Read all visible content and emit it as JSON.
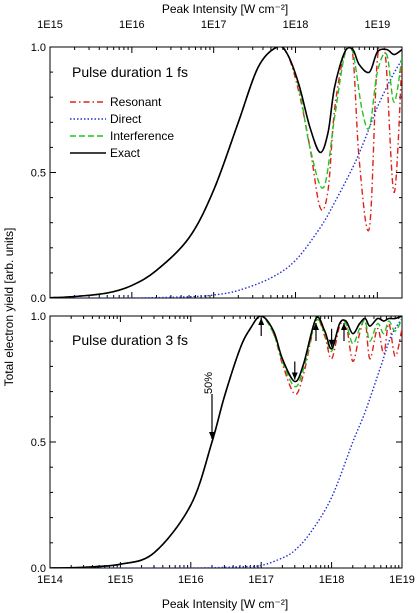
{
  "chart_data": [
    {
      "type": "line",
      "panel_label": "Pulse duration 1 fs",
      "xlabel": "Peak Intensity [W cm⁻²]",
      "x_scale": "log",
      "xlim": [
        1000000000000000.0,
        2e+19
      ],
      "x_ticks": [
        {
          "value": 1000000000000000.0,
          "label": "1E15"
        },
        {
          "value": 1e+16,
          "label": "1E16"
        },
        {
          "value": 1e+17,
          "label": "1E17"
        },
        {
          "value": 1e+18,
          "label": "1E18"
        },
        {
          "value": 1e+19,
          "label": "1E19"
        }
      ],
      "ylim": [
        0,
        1
      ],
      "y_ticks": [
        {
          "value": 0,
          "label": "0.0"
        },
        {
          "value": 0.5,
          "label": "0.5"
        },
        {
          "value": 1,
          "label": "1.0"
        }
      ],
      "legend_position": "left",
      "series": [
        {
          "name": "Resonant",
          "color": "#e0201b",
          "dash": "dashdot",
          "x": [
            1000000000000000.0,
            2000000000000000.0,
            5000000000000000.0,
            1e+16,
            2e+16,
            5e+16,
            1e+17,
            2e+17,
            3.5e+17,
            6e+17,
            8e+17,
            1.1e+18,
            1.5e+18,
            2e+18,
            2.5e+18,
            3e+18,
            4e+18,
            5e+18,
            6e+18,
            8e+18,
            1e+19,
            1.25e+19,
            1.6e+19,
            2e+19
          ],
          "y": [
            0.001,
            0.006,
            0.02,
            0.05,
            0.11,
            0.24,
            0.43,
            0.7,
            0.92,
            1.0,
            0.97,
            0.82,
            0.6,
            0.36,
            0.43,
            0.75,
            0.98,
            0.97,
            0.55,
            0.28,
            0.95,
            0.97,
            0.42,
            0.95
          ]
        },
        {
          "name": "Direct",
          "color": "#1f2fd6",
          "dash": "dot",
          "x": [
            1000000000000000.0,
            1e+16,
            5e+16,
            1e+17,
            2e+17,
            5e+17,
            1e+18,
            2e+18,
            3e+18,
            5e+18,
            7e+18,
            1e+19,
            1.5e+19,
            2e+19
          ],
          "y": [
            0,
            0,
            0.005,
            0.012,
            0.03,
            0.08,
            0.15,
            0.28,
            0.38,
            0.52,
            0.63,
            0.76,
            0.88,
            0.95
          ]
        },
        {
          "name": "Interference",
          "color": "#22c322",
          "dash": "dash",
          "x": [
            1000000000000000.0,
            2000000000000000.0,
            5000000000000000.0,
            1e+16,
            2e+16,
            5e+16,
            1e+17,
            2e+17,
            3.5e+17,
            6e+17,
            8e+17,
            1.1e+18,
            1.5e+18,
            2.2e+18,
            3e+18,
            4e+18,
            5e+18,
            6.5e+18,
            8e+18,
            1e+19,
            1.3e+19,
            1.6e+19,
            2e+19
          ],
          "y": [
            0.001,
            0.006,
            0.02,
            0.05,
            0.11,
            0.24,
            0.43,
            0.7,
            0.92,
            1.0,
            0.97,
            0.84,
            0.6,
            0.44,
            0.72,
            0.97,
            0.98,
            0.75,
            0.68,
            0.9,
            0.97,
            0.78,
            0.96
          ]
        },
        {
          "name": "Exact",
          "color": "#000000",
          "dash": "solid",
          "x": [
            1000000000000000.0,
            2000000000000000.0,
            5000000000000000.0,
            1e+16,
            2e+16,
            5e+16,
            1e+17,
            2e+17,
            3.5e+17,
            6e+17,
            8e+17,
            1.1e+18,
            1.5e+18,
            2e+18,
            2.5e+18,
            3e+18,
            4e+18,
            5e+18,
            6e+18,
            8e+18,
            1e+19,
            1.3e+19,
            1.6e+19,
            2e+19
          ],
          "y": [
            0.001,
            0.006,
            0.02,
            0.05,
            0.11,
            0.24,
            0.43,
            0.7,
            0.92,
            1.0,
            0.97,
            0.85,
            0.68,
            0.58,
            0.66,
            0.84,
            0.98,
            0.99,
            0.93,
            0.9,
            0.98,
            0.99,
            0.97,
            0.99
          ]
        }
      ]
    },
    {
      "type": "line",
      "panel_label": "Pulse duration 3 fs",
      "xlabel": "Peak Intensity [W cm⁻²]",
      "x_scale": "log",
      "xlim": [
        100000000000000.0,
        1e+19
      ],
      "x_ticks": [
        {
          "value": 100000000000000.0,
          "label": "1E14"
        },
        {
          "value": 1000000000000000.0,
          "label": "1E15"
        },
        {
          "value": 1e+16,
          "label": "1E16"
        },
        {
          "value": 1e+17,
          "label": "1E17"
        },
        {
          "value": 1e+18,
          "label": "1E18"
        },
        {
          "value": 1e+19,
          "label": "1E19"
        }
      ],
      "ylim": [
        0,
        1
      ],
      "y_ticks": [
        {
          "value": 0,
          "label": "0.0"
        },
        {
          "value": 0.5,
          "label": "0.5"
        },
        {
          "value": 1,
          "label": "1.0"
        }
      ],
      "annotations": [
        {
          "text": "50%",
          "x": 2e+16,
          "y": 0.5,
          "arrow": "down"
        },
        {
          "x": 1e+17,
          "y": 1.0,
          "arrow": "up"
        },
        {
          "x": 3e+17,
          "y": 0.74,
          "arrow": "down"
        },
        {
          "x": 6e+17,
          "y": 0.98,
          "arrow": "up"
        },
        {
          "x": 1e+18,
          "y": 0.87,
          "arrow": "down"
        },
        {
          "x": 1.5e+18,
          "y": 0.98,
          "arrow": "up"
        }
      ],
      "series": [
        {
          "name": "Resonant",
          "color": "#e0201b",
          "dash": "dashdot",
          "x": [
            100000000000000.0,
            300000000000000.0,
            1000000000000000.0,
            3000000000000000.0,
            1e+16,
            2e+16,
            3e+16,
            5e+16,
            7e+16,
            1e+17,
            1.5e+17,
            2e+17,
            3e+17,
            4e+17,
            6e+17,
            8e+17,
            1e+18,
            1.3e+18,
            1.6e+18,
            2e+18,
            2.5e+18,
            3e+18,
            3.5e+18,
            4.5e+18,
            5.5e+18,
            6.5e+18,
            8e+18,
            1e+19
          ],
          "y": [
            0,
            0.003,
            0.015,
            0.06,
            0.25,
            0.5,
            0.68,
            0.87,
            0.95,
            1.0,
            0.93,
            0.81,
            0.69,
            0.77,
            0.98,
            0.92,
            0.83,
            0.96,
            0.97,
            0.82,
            0.93,
            0.98,
            0.83,
            0.95,
            0.85,
            0.97,
            0.84,
            0.95
          ]
        },
        {
          "name": "Direct",
          "color": "#1f2fd6",
          "dash": "dot",
          "x": [
            100000000000000.0,
            1e+16,
            5e+16,
            1e+17,
            2e+17,
            3e+17,
            5e+17,
            1e+18,
            2e+18,
            3e+18,
            5e+18,
            7e+18,
            1e+19
          ],
          "y": [
            0,
            0,
            0.005,
            0.01,
            0.04,
            0.07,
            0.14,
            0.28,
            0.5,
            0.62,
            0.8,
            0.92,
            0.99
          ]
        },
        {
          "name": "Interference",
          "color": "#22c322",
          "dash": "dash",
          "x": [
            100000000000000.0,
            300000000000000.0,
            1000000000000000.0,
            3000000000000000.0,
            1e+16,
            2e+16,
            3e+16,
            5e+16,
            7e+16,
            1e+17,
            1.5e+17,
            2e+17,
            3e+17,
            4e+17,
            6e+17,
            8e+17,
            1e+18,
            1.3e+18,
            1.6e+18,
            2e+18,
            2.5e+18,
            3e+18,
            3.5e+18,
            4.5e+18,
            5.5e+18,
            6.5e+18,
            8e+18,
            1e+19
          ],
          "y": [
            0,
            0.003,
            0.015,
            0.06,
            0.25,
            0.5,
            0.68,
            0.87,
            0.95,
            1.0,
            0.93,
            0.82,
            0.72,
            0.79,
            0.98,
            0.93,
            0.86,
            0.97,
            0.97,
            0.89,
            0.95,
            0.98,
            0.9,
            0.97,
            0.93,
            0.98,
            0.94,
            0.99
          ]
        },
        {
          "name": "Exact",
          "color": "#000000",
          "dash": "solid",
          "x": [
            100000000000000.0,
            300000000000000.0,
            1000000000000000.0,
            3000000000000000.0,
            1e+16,
            2e+16,
            3e+16,
            5e+16,
            7e+16,
            1e+17,
            1.5e+17,
            2e+17,
            3e+17,
            4e+17,
            6e+17,
            8e+17,
            1e+18,
            1.3e+18,
            1.6e+18,
            2e+18,
            2.5e+18,
            3e+18,
            3.5e+18,
            4.5e+18,
            5.5e+18,
            6.5e+18,
            8e+18,
            1e+19
          ],
          "y": [
            0,
            0.003,
            0.015,
            0.06,
            0.25,
            0.5,
            0.68,
            0.87,
            0.95,
            1.0,
            0.94,
            0.83,
            0.74,
            0.81,
            0.99,
            0.94,
            0.87,
            0.97,
            0.98,
            0.93,
            0.97,
            0.99,
            0.96,
            0.99,
            0.98,
            0.99,
            0.99,
            1.0
          ]
        }
      ]
    }
  ],
  "shared": {
    "ylabel": "Total electron yield [arb. units]"
  }
}
